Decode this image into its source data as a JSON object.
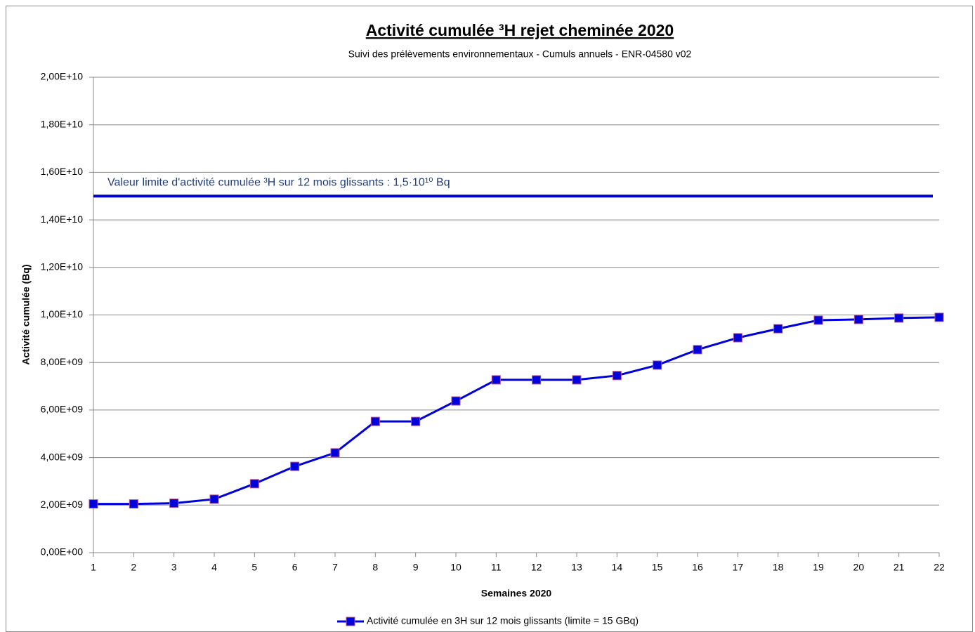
{
  "chart_data": {
    "type": "line",
    "title": "Activité cumulée ³H rejet cheminée 2020",
    "subtitle": "Suivi des prélèvements environnementaux - Cumuls annuels - ENR-04580 v02",
    "annotation": "Valeur limite d'activité cumulée ³H sur 12 mois  glissants : 1,5·10¹⁰ Bq",
    "limit": 15000000000,
    "limit_color": "#0000cc",
    "x_label": "Semaines 2020",
    "y_label": "Activité cumulée (Bq)",
    "x": [
      1,
      2,
      3,
      4,
      5,
      6,
      7,
      8,
      9,
      10,
      11,
      12,
      13,
      14,
      15,
      16,
      17,
      18,
      19,
      20,
      21,
      22
    ],
    "xlim": [
      1,
      22
    ],
    "xticks": [
      1,
      2,
      3,
      4,
      5,
      6,
      7,
      8,
      9,
      10,
      11,
      12,
      13,
      14,
      15,
      16,
      17,
      18,
      19,
      20,
      21,
      22
    ],
    "ylim": [
      0,
      20000000000
    ],
    "yticks": [
      {
        "value": 0,
        "label": "0,00E+00"
      },
      {
        "value": 2000000000,
        "label": "2,00E+09"
      },
      {
        "value": 4000000000,
        "label": "4,00E+09"
      },
      {
        "value": 6000000000,
        "label": "6,00E+09"
      },
      {
        "value": 8000000000,
        "label": "8,00E+09"
      },
      {
        "value": 10000000000,
        "label": "1,00E+10"
      },
      {
        "value": 12000000000,
        "label": "1,20E+10"
      },
      {
        "value": 14000000000,
        "label": "1,40E+10"
      },
      {
        "value": 16000000000,
        "label": "1,60E+10"
      },
      {
        "value": 18000000000,
        "label": "1,80E+10"
      },
      {
        "value": 20000000000,
        "label": "2,00E+10"
      }
    ],
    "grid": true,
    "legend": "bottom",
    "series": [
      {
        "name": "Activité cumulée en 3H sur 12 mois glissants (limite = 15 GBq)",
        "color": "#0000dd",
        "marker_edge": "#b0508a",
        "values": [
          2050000000,
          2050000000,
          2080000000,
          2250000000,
          2900000000,
          3630000000,
          4200000000,
          5520000000,
          5520000000,
          6380000000,
          7270000000,
          7270000000,
          7270000000,
          7450000000,
          7890000000,
          8540000000,
          9040000000,
          9420000000,
          9780000000,
          9810000000,
          9870000000,
          9900000000
        ]
      }
    ]
  }
}
